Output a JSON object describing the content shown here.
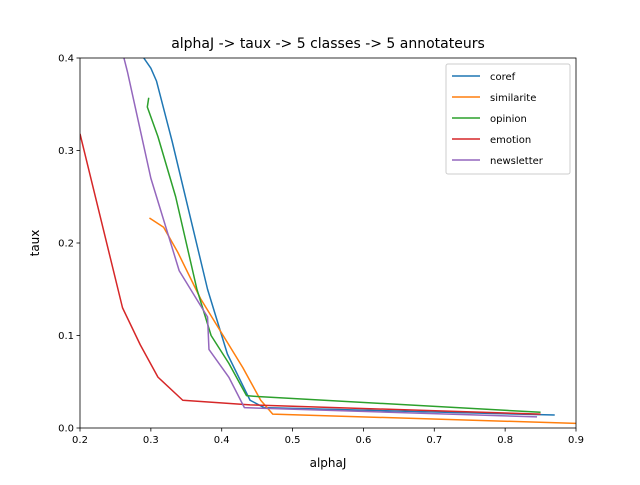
{
  "chart_data": {
    "type": "line",
    "title": "alphaJ -> taux -> 5 classes -> 5 annotateurs",
    "xlabel": "alphaJ",
    "ylabel": "taux",
    "xlim": [
      0.2,
      0.9
    ],
    "ylim": [
      0.0,
      0.4
    ],
    "xticks": [
      "0.2",
      "0.3",
      "0.4",
      "0.5",
      "0.6",
      "0.7",
      "0.8",
      "0.9"
    ],
    "yticks": [
      "0.0",
      "0.1",
      "0.2",
      "0.3",
      "0.4"
    ],
    "grid": false,
    "legend_position": "top-right",
    "series": [
      {
        "name": "coref",
        "color": "#1f77b4",
        "points": [
          [
            0.29,
            0.4
          ],
          [
            0.3,
            0.389
          ],
          [
            0.308,
            0.375
          ],
          [
            0.33,
            0.31
          ],
          [
            0.38,
            0.15
          ],
          [
            0.408,
            0.08
          ],
          [
            0.44,
            0.03
          ],
          [
            0.46,
            0.022
          ],
          [
            0.87,
            0.014
          ]
        ]
      },
      {
        "name": "similarite",
        "color": "#ff7f0e",
        "points": [
          [
            0.298,
            0.227
          ],
          [
            0.318,
            0.217
          ],
          [
            0.338,
            0.19
          ],
          [
            0.37,
            0.14
          ],
          [
            0.43,
            0.065
          ],
          [
            0.455,
            0.03
          ],
          [
            0.472,
            0.015
          ],
          [
            0.9,
            0.005
          ]
        ]
      },
      {
        "name": "opinion",
        "color": "#2ca02c",
        "points": [
          [
            0.297,
            0.357
          ],
          [
            0.295,
            0.347
          ],
          [
            0.31,
            0.315
          ],
          [
            0.335,
            0.25
          ],
          [
            0.365,
            0.15
          ],
          [
            0.385,
            0.1
          ],
          [
            0.41,
            0.07
          ],
          [
            0.435,
            0.035
          ],
          [
            0.45,
            0.034
          ],
          [
            0.85,
            0.017
          ]
        ]
      },
      {
        "name": "emotion",
        "color": "#d62728",
        "points": [
          [
            0.2,
            0.318
          ],
          [
            0.26,
            0.13
          ],
          [
            0.285,
            0.09
          ],
          [
            0.31,
            0.055
          ],
          [
            0.345,
            0.03
          ],
          [
            0.44,
            0.025
          ],
          [
            0.85,
            0.015
          ]
        ]
      },
      {
        "name": "newsletter",
        "color": "#9467bd",
        "points": [
          [
            0.262,
            0.4
          ],
          [
            0.267,
            0.385
          ],
          [
            0.3,
            0.27
          ],
          [
            0.34,
            0.17
          ],
          [
            0.38,
            0.12
          ],
          [
            0.382,
            0.085
          ],
          [
            0.41,
            0.055
          ],
          [
            0.432,
            0.022
          ],
          [
            0.845,
            0.012
          ]
        ]
      }
    ]
  }
}
